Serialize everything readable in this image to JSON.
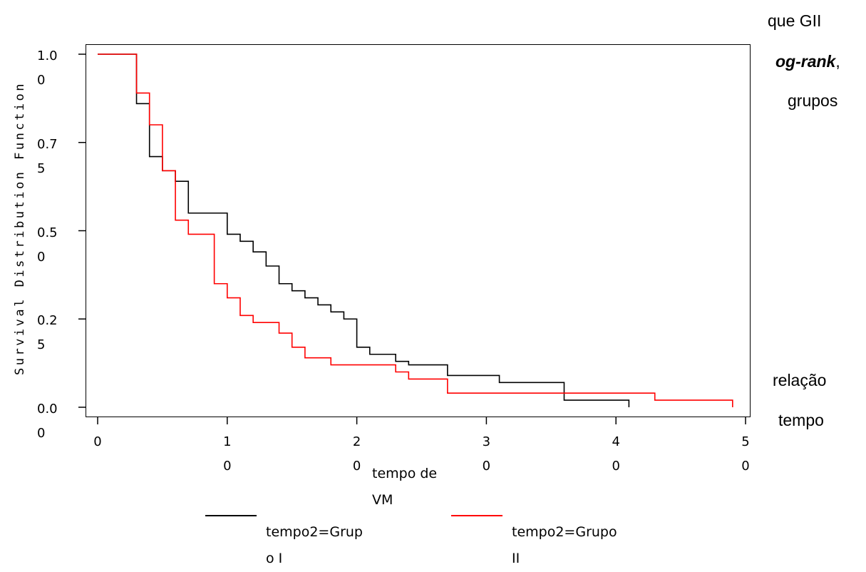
{
  "background_text": {
    "line1": "que GII",
    "line2_italic": "og-rank",
    "line2_tail": ",",
    "line3": "grupos",
    "line4": "relação",
    "line5": "tempo"
  },
  "chart_data": {
    "type": "line",
    "step": true,
    "ylabel": "Survival Distribution Function",
    "xlabel": "tempo de\nVM",
    "xlim": [
      0,
      50
    ],
    "ylim": [
      0,
      1
    ],
    "x_ticks": [
      0,
      10,
      20,
      30,
      40,
      50
    ],
    "x_tick_labels": [
      "0",
      "1\n0",
      "2\n0",
      "3\n0",
      "4\n0",
      "5\n0"
    ],
    "y_ticks": [
      0,
      0.25,
      0.5,
      0.75,
      1.0
    ],
    "y_tick_labels": [
      "0.0\n0",
      "0.2\n5",
      "0.5\n0",
      "0.7\n5",
      "1.0\n0"
    ],
    "series": [
      {
        "name": "tempo2=Grupo I",
        "legend_label": "tempo2=Grup\no I",
        "color": "#000000",
        "x": [
          0,
          3,
          4,
          5,
          6,
          7,
          10,
          11,
          12,
          13,
          14,
          15,
          16,
          17,
          18,
          19,
          20,
          21,
          23,
          24,
          27,
          31,
          36,
          41
        ],
        "y": [
          1.0,
          0.86,
          0.71,
          0.67,
          0.64,
          0.55,
          0.49,
          0.47,
          0.44,
          0.4,
          0.35,
          0.33,
          0.31,
          0.29,
          0.27,
          0.25,
          0.17,
          0.15,
          0.13,
          0.12,
          0.09,
          0.07,
          0.02,
          0.0
        ]
      },
      {
        "name": "tempo2=Grupo II",
        "legend_label": "tempo2=Grupo\nII",
        "color": "#ff0000",
        "x": [
          0,
          3,
          4,
          5,
          6,
          7,
          9,
          10,
          11,
          12,
          14,
          15,
          16,
          18,
          23,
          24,
          27,
          43,
          49
        ],
        "y": [
          1.0,
          0.89,
          0.8,
          0.67,
          0.53,
          0.49,
          0.35,
          0.31,
          0.26,
          0.24,
          0.21,
          0.17,
          0.14,
          0.12,
          0.1,
          0.08,
          0.04,
          0.02,
          0.0
        ]
      }
    ]
  }
}
